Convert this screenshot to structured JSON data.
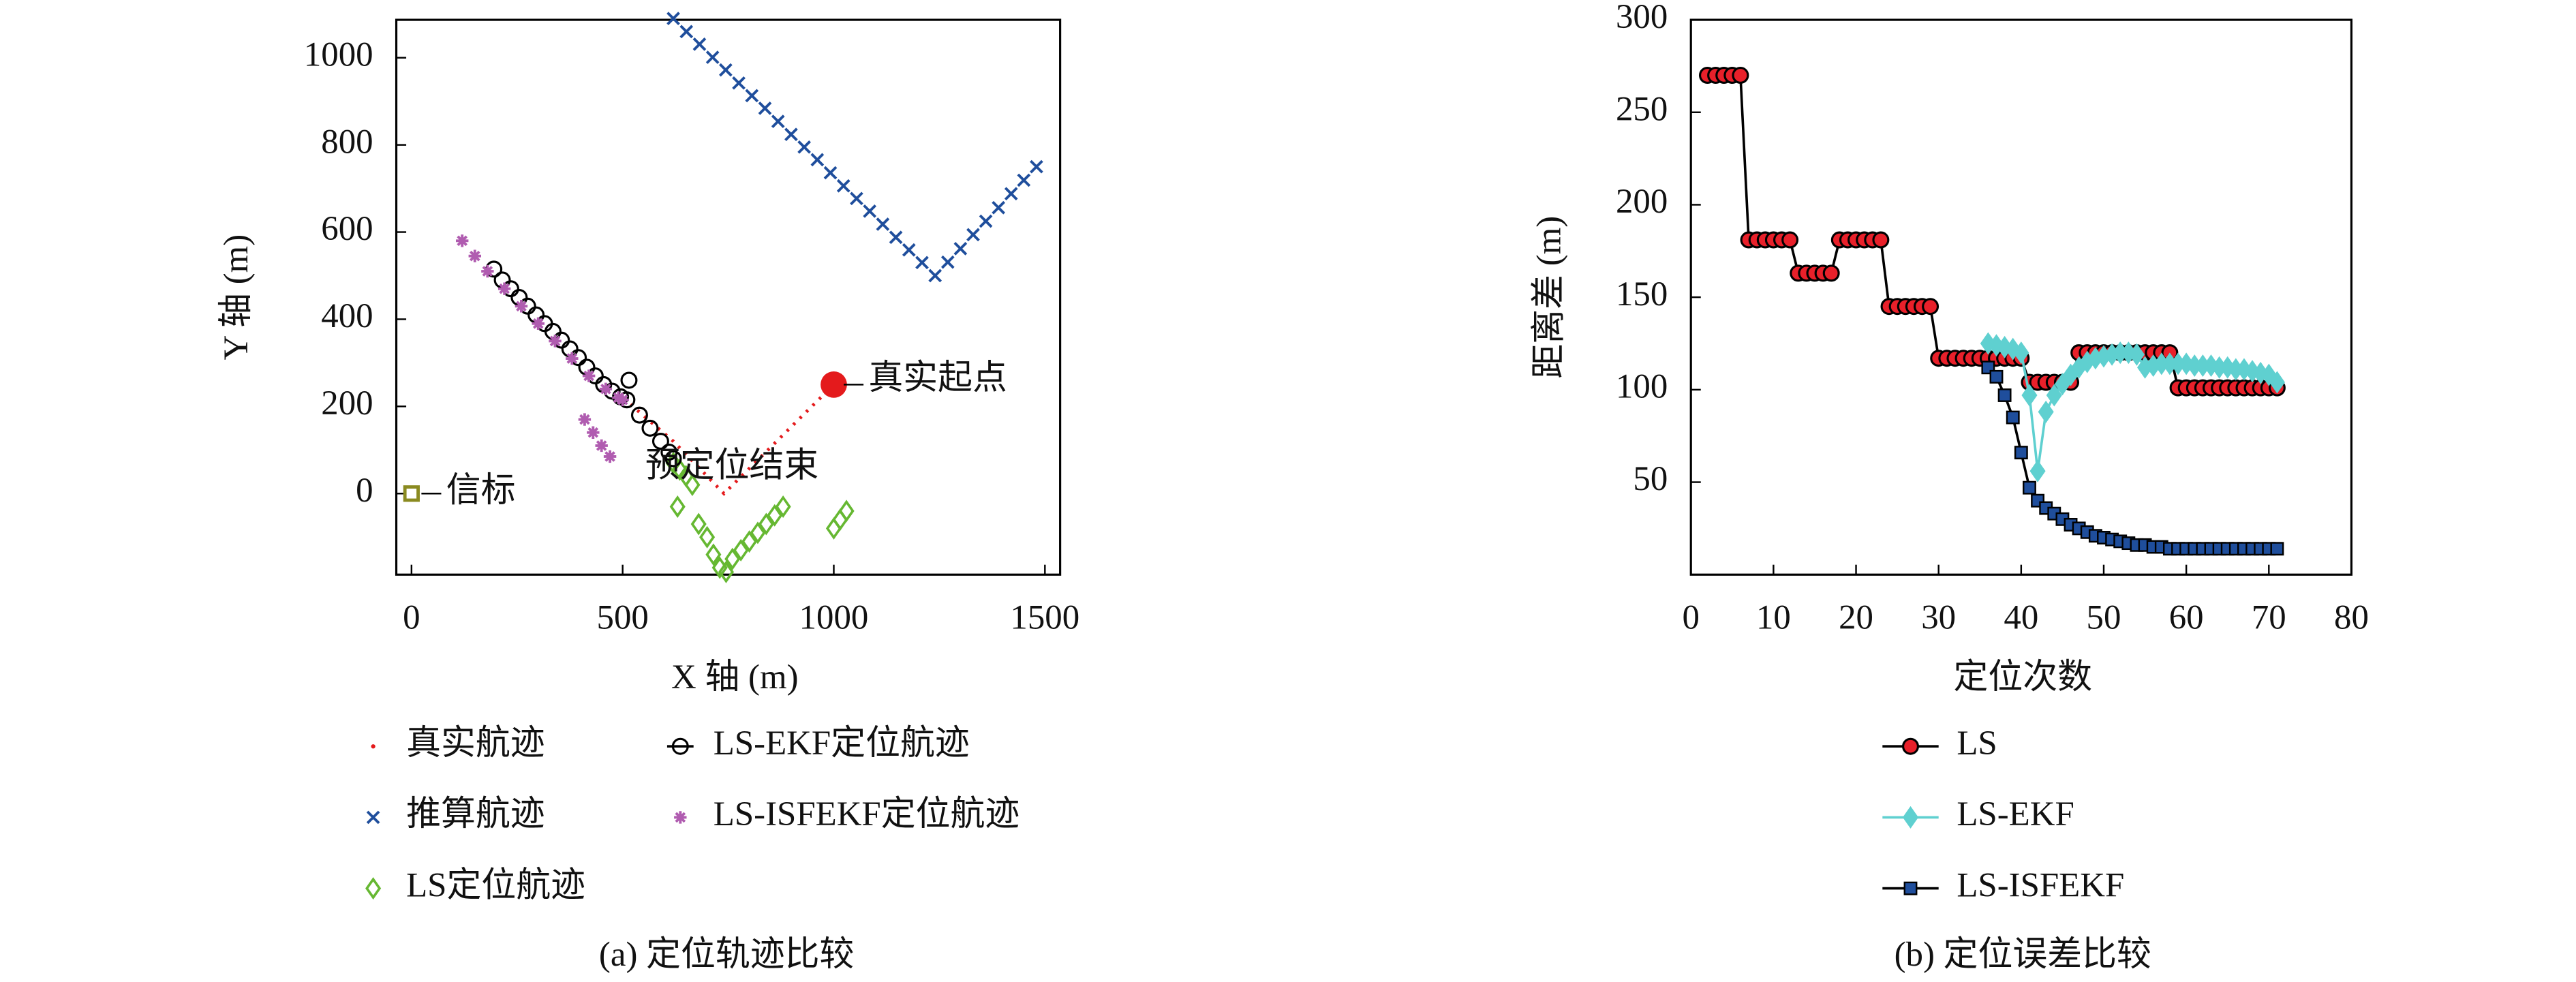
{
  "chart_data": [
    {
      "type": "scatter",
      "caption": "(a) 定位轨迹比较",
      "x_label": "X 轴 (m)",
      "y_label": "Y 轴 (m)",
      "xlim": [
        -36,
        1536
      ],
      "ylim": [
        -186,
        1087
      ],
      "xticks": [
        0,
        500,
        1000,
        1500
      ],
      "yticks": [
        0,
        200,
        400,
        600,
        800,
        1000
      ],
      "series": [
        {
          "name": "真实航迹",
          "color": "#e41a1c",
          "marker": "dot",
          "x": [
            1000,
            740,
            680,
            620,
            560,
            500
          ],
          "y": [
            250,
            0,
            60,
            120,
            170,
            220
          ]
        },
        {
          "name": "推算航迹",
          "color": "#1f4e9c",
          "marker": "x",
          "x": [
            620,
            651,
            682,
            713,
            744,
            775,
            806,
            837,
            868,
            899,
            930,
            961,
            992,
            1023,
            1054,
            1085,
            1116,
            1147,
            1178,
            1209,
            1240,
            1270,
            1300,
            1330,
            1360,
            1390,
            1420,
            1450,
            1480
          ],
          "y": [
            1090,
            1060,
            1031,
            1001,
            972,
            942,
            913,
            884,
            854,
            824,
            795,
            766,
            736,
            706,
            677,
            648,
            618,
            588,
            559,
            530,
            500,
            531,
            562,
            594,
            625,
            656,
            688,
            719,
            750
          ]
        },
        {
          "name": "LS定位航迹",
          "color": "#66b832",
          "marker": "diamond",
          "x": [
            620,
            635,
            650,
            665,
            630,
            680,
            700,
            715,
            730,
            745,
            760,
            780,
            800,
            820,
            840,
            860,
            880,
            1000,
            1015,
            1030
          ],
          "y": [
            70,
            55,
            40,
            20,
            -30,
            -70,
            -100,
            -140,
            -170,
            -180,
            -150,
            -130,
            -110,
            -90,
            -70,
            -50,
            -30,
            -80,
            -60,
            -40
          ]
        },
        {
          "name": "LS-EKF定位航迹",
          "color": "#000000",
          "marker": "circle",
          "x": [
            195,
            215,
            235,
            255,
            275,
            295,
            315,
            335,
            355,
            375,
            395,
            415,
            435,
            455,
            475,
            495,
            510,
            515,
            540,
            565,
            590,
            610,
            620
          ],
          "y": [
            515,
            490,
            470,
            450,
            430,
            410,
            390,
            372,
            352,
            332,
            312,
            290,
            270,
            250,
            235,
            222,
            215,
            260,
            180,
            150,
            120,
            95,
            80
          ]
        },
        {
          "name": "LS-ISFEKF定位航迹",
          "color": "#b05cb0",
          "marker": "star",
          "x": [
            120,
            150,
            180,
            220,
            260,
            300,
            340,
            380,
            420,
            460,
            490,
            500,
            410,
            430,
            450,
            470
          ],
          "y": [
            580,
            545,
            510,
            470,
            430,
            390,
            350,
            310,
            270,
            240,
            220,
            215,
            170,
            140,
            110,
            85
          ]
        }
      ],
      "annotations": [
        {
          "text": "真实起点",
          "x": 1000,
          "y": 250,
          "color": "#e41a1c"
        },
        {
          "text": "预定位结束",
          "x": 620,
          "y": 80
        },
        {
          "text": "信标",
          "x": 0,
          "y": 0,
          "color": "#8a8a20"
        }
      ]
    },
    {
      "type": "line",
      "caption": "(b) 定位误差比较",
      "x_label": "定位次数",
      "y_label": "距离差 (m)",
      "xlim": [
        0,
        80
      ],
      "ylim": [
        0,
        300
      ],
      "xticks": [
        0,
        10,
        20,
        30,
        40,
        50,
        60,
        70,
        80
      ],
      "yticks": [
        50,
        100,
        150,
        200,
        250,
        300
      ],
      "x": [
        2,
        3,
        4,
        5,
        6,
        7,
        8,
        9,
        10,
        11,
        12,
        13,
        14,
        15,
        16,
        17,
        18,
        19,
        20,
        21,
        22,
        23,
        24,
        25,
        26,
        27,
        28,
        29,
        30,
        31,
        32,
        33,
        34,
        35,
        36,
        37,
        38,
        39,
        40,
        41,
        42,
        43,
        44,
        45,
        46,
        47,
        48,
        49,
        50,
        51,
        52,
        53,
        54,
        55,
        56,
        57,
        58,
        59,
        60,
        61,
        62,
        63,
        64,
        65,
        66,
        67,
        68,
        69,
        70,
        71
      ],
      "series": [
        {
          "name": "LS",
          "color": "#e8202a",
          "line_color": "#000000",
          "marker": "circle",
          "values": [
            270,
            270,
            270,
            270,
            270,
            181,
            181,
            181,
            181,
            181,
            181,
            163,
            163,
            163,
            163,
            163,
            181,
            181,
            181,
            181,
            181,
            181,
            145,
            145,
            145,
            145,
            145,
            145,
            117,
            117,
            117,
            117,
            117,
            117,
            117,
            117,
            117,
            117,
            117,
            104,
            104,
            104,
            104,
            104,
            104,
            120,
            120,
            120,
            120,
            120,
            120,
            120,
            120,
            120,
            120,
            120,
            120,
            101,
            101,
            101,
            101,
            101,
            101,
            101,
            101,
            101,
            101,
            101,
            101,
            101
          ]
        },
        {
          "name": "LS-EKF",
          "color": "#5fd0d0",
          "line_color": "#5fd0d0",
          "marker": "diamond",
          "values": [
            null,
            null,
            null,
            null,
            null,
            null,
            null,
            null,
            null,
            null,
            null,
            null,
            null,
            null,
            null,
            null,
            null,
            null,
            null,
            null,
            null,
            null,
            null,
            null,
            null,
            null,
            null,
            null,
            null,
            null,
            null,
            null,
            null,
            null,
            125,
            124,
            123,
            122,
            120,
            97,
            56,
            88,
            97,
            103,
            108,
            112,
            115,
            117,
            118,
            119,
            120,
            120,
            119,
            112,
            113,
            114,
            114,
            114,
            114,
            113,
            113,
            113,
            112,
            112,
            111,
            111,
            110,
            109,
            108,
            104
          ]
        },
        {
          "name": "LS-ISFEKF",
          "color": "#1f4e9c",
          "line_color": "#000000",
          "marker": "square",
          "values": [
            null,
            null,
            null,
            null,
            null,
            null,
            null,
            null,
            null,
            null,
            null,
            null,
            null,
            null,
            null,
            null,
            null,
            null,
            null,
            null,
            null,
            null,
            null,
            null,
            null,
            null,
            null,
            null,
            null,
            null,
            null,
            null,
            null,
            null,
            112,
            107,
            97,
            85,
            66,
            47,
            40,
            36,
            33,
            30,
            27,
            25,
            23,
            21,
            20,
            19,
            18,
            17,
            16,
            16,
            15,
            15,
            14,
            14,
            14,
            14,
            14,
            14,
            14,
            14,
            14,
            14,
            14,
            14,
            14,
            14
          ]
        }
      ]
    }
  ]
}
